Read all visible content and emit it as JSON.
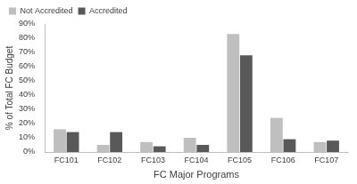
{
  "chart_data": {
    "type": "bar",
    "categories": [
      "FC101",
      "FC102",
      "FC103",
      "FC104",
      "FC105",
      "FC106",
      "FC107"
    ],
    "series": [
      {
        "name": "Not Accredited",
        "color": "#bfbfbf",
        "values": [
          16,
          5,
          7,
          10,
          83,
          24,
          7
        ]
      },
      {
        "name": "Accredited",
        "color": "#595959",
        "values": [
          14,
          14,
          4,
          5,
          68,
          9,
          8
        ]
      }
    ],
    "x_label": "FC Major Programs",
    "y_label": "% of Total FC Budget",
    "ylim": [
      0,
      90
    ],
    "yticks": [
      {
        "value": 0,
        "label": "0%"
      },
      {
        "value": 10,
        "label": "10%"
      },
      {
        "value": 20,
        "label": "20%"
      },
      {
        "value": 30,
        "label": "30%"
      },
      {
        "value": 40,
        "label": "40%"
      },
      {
        "value": 50,
        "label": "50%"
      },
      {
        "value": 60,
        "label": "60%"
      },
      {
        "value": 70,
        "label": "70%"
      },
      {
        "value": 80,
        "label": "80%"
      },
      {
        "value": 90,
        "label": "90%"
      }
    ],
    "grid": false,
    "legend": "upper left"
  }
}
